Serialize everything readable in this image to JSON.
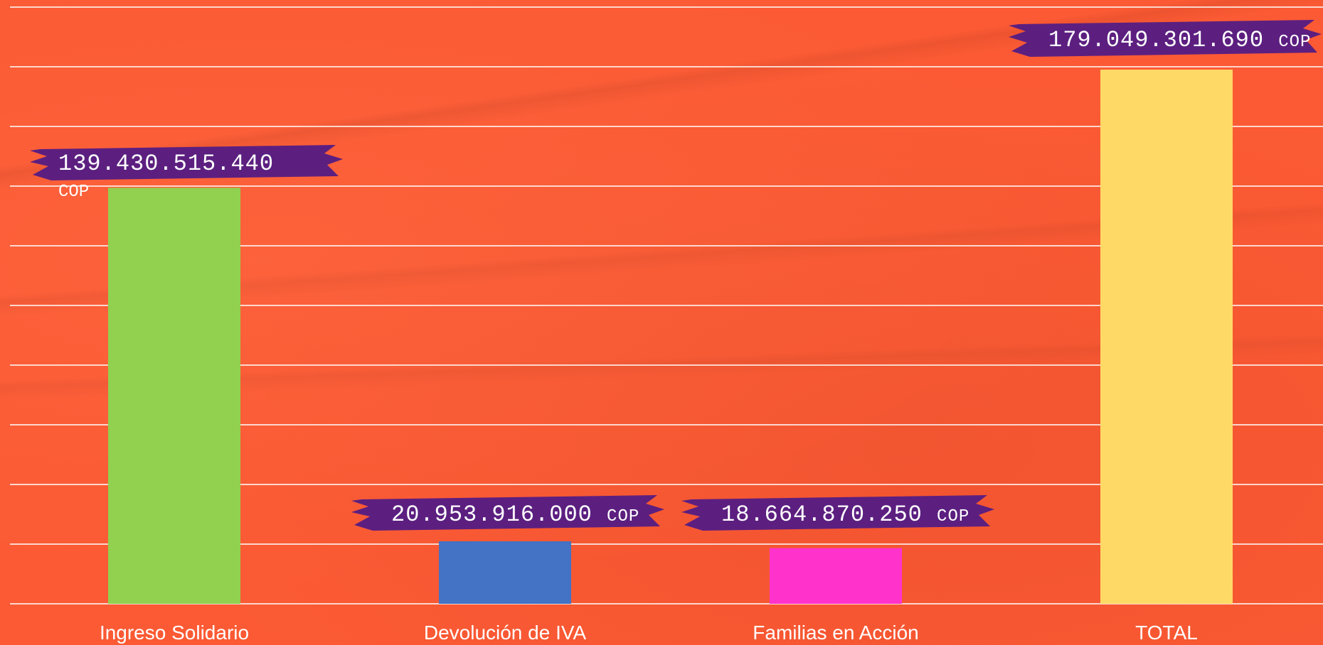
{
  "chart_data": {
    "type": "bar",
    "title": "",
    "xlabel": "",
    "ylabel": "",
    "categories": [
      "Ingreso Solidario",
      "Devolución de IVA",
      "Familias en Acción",
      "TOTAL"
    ],
    "values": [
      139430515440,
      20953916000,
      18664870250,
      179049301690
    ],
    "value_labels": [
      "139.430.515.440",
      "20.953.916.000",
      "18.664.870.250",
      "179.049.301.690"
    ],
    "unit": "COP",
    "ylim": [
      0,
      200000000000
    ],
    "gridline_step": 20000000000,
    "grid": true,
    "legend": "none",
    "colors": [
      "#92d050",
      "#4472c4",
      "#ff33cc",
      "#ffd966"
    ],
    "label_tag_color": "#5c1f80",
    "grid_color": "#ffffff",
    "background_color": "#fb5a34"
  }
}
